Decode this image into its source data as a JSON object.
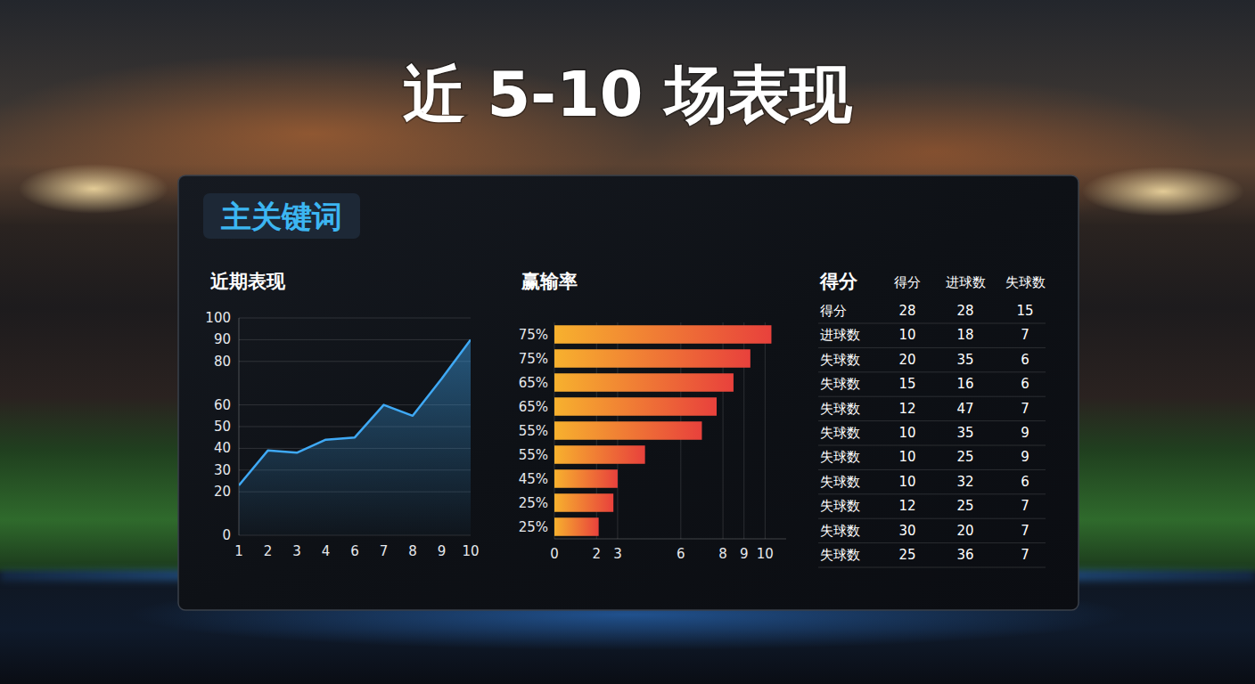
{
  "title": "近 5-10 场表现",
  "badge": "主关键词",
  "chart_data": [
    {
      "type": "line",
      "title": "近期表现",
      "categories": [
        "1",
        "2",
        "3",
        "4",
        "6",
        "7",
        "8",
        "9",
        "10"
      ],
      "values": [
        23,
        39,
        38,
        44,
        45,
        60,
        55,
        72,
        90
      ],
      "color": "#3fa9f5",
      "ylim": [
        0,
        100
      ],
      "yticks": [
        0,
        20,
        30,
        40,
        50,
        60,
        80,
        90,
        100
      ],
      "grid": true
    },
    {
      "type": "bar",
      "title": "赢输率",
      "orientation": "horizontal",
      "categories": [
        "75%",
        "75%",
        "65%",
        "65%",
        "55%",
        "55%",
        "45%",
        "25%",
        "25%"
      ],
      "values": [
        10.3,
        9.3,
        8.5,
        7.7,
        7.0,
        4.3,
        3.0,
        2.8,
        2.1
      ],
      "color": "#e8413c",
      "xlim": [
        0,
        11
      ],
      "xticks": [
        0,
        2,
        3,
        6,
        8,
        9,
        10
      ],
      "grid": true
    }
  ],
  "table": {
    "title": "得分",
    "columns": [
      "得分",
      "进球数",
      "失球数"
    ],
    "rows": [
      [
        "得分",
        28,
        28,
        15
      ],
      [
        "进球数",
        10,
        18,
        7
      ],
      [
        "失球数",
        20,
        35,
        6
      ],
      [
        "失球数",
        15,
        16,
        6
      ],
      [
        "失球数",
        12,
        47,
        7
      ],
      [
        "失球数",
        10,
        35,
        9
      ],
      [
        "失球数",
        10,
        25,
        9
      ],
      [
        "失球数",
        10,
        32,
        6
      ],
      [
        "失球数",
        12,
        25,
        7
      ],
      [
        "失球数",
        30,
        20,
        7
      ],
      [
        "失球数",
        25,
        36,
        7
      ]
    ]
  }
}
